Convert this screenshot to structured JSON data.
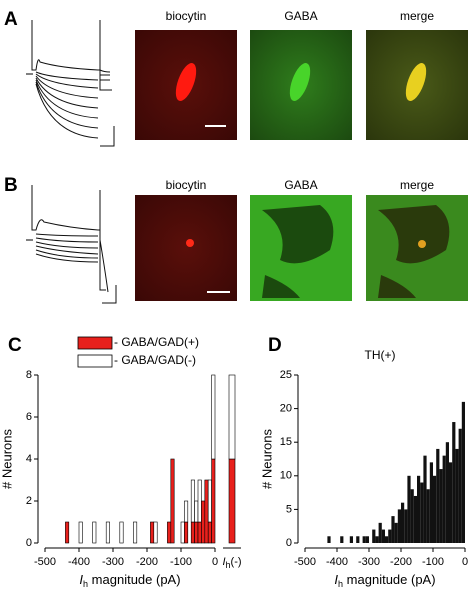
{
  "panels": [
    {
      "label": "A",
      "images": [
        "biocytin",
        "GABA",
        "merge"
      ]
    },
    {
      "label": "B",
      "images": [
        "biocytin",
        "GABA",
        "merge"
      ]
    }
  ],
  "chart_data": [
    {
      "type": "stacked_bar",
      "panel_label": "C",
      "x": [
        -435,
        -395,
        -355,
        -315,
        -275,
        -235,
        -185,
        -175,
        -135,
        -125,
        -95,
        -85,
        -65,
        -55,
        -45,
        -35,
        -25,
        -15,
        -5
      ],
      "series": [
        {
          "name": "- GABA/GAD(+)",
          "color": "#e8201c",
          "values": [
            1,
            0,
            0,
            0,
            0,
            0,
            1,
            0,
            1,
            4,
            0,
            1,
            1,
            1,
            1,
            2,
            3,
            1,
            4
          ],
          "extra_value": 4
        },
        {
          "name": "- GABA/GAD(-)",
          "color": "#ffffff",
          "values": [
            0,
            1,
            1,
            1,
            1,
            1,
            0,
            1,
            0,
            0,
            1,
            1,
            2,
            1,
            2,
            0,
            0,
            2,
            4
          ],
          "extra_value": 4
        }
      ],
      "extra_label": {
        "symbol": "I",
        "subscript": "h",
        "text": "(-)"
      },
      "xlim": [
        -500,
        0
      ],
      "xticks": [
        -500,
        -400,
        -300,
        -200,
        -100,
        0
      ],
      "ylim": [
        0,
        8
      ],
      "yticks": [
        0,
        2,
        4,
        6,
        8
      ],
      "x_label": {
        "symbol": "I",
        "subscript": "h",
        "text": " magnitude (pA)"
      },
      "y_label": "# Neurons"
    },
    {
      "type": "histogram",
      "panel_label": "D",
      "title": "TH(+)",
      "color": "#111111",
      "bins": [
        -440,
        -430,
        -420,
        -410,
        -400,
        -390,
        -380,
        -370,
        -360,
        -350,
        -340,
        -330,
        -320,
        -310,
        -300,
        -290,
        -280,
        -270,
        -260,
        -250,
        -240,
        -230,
        -220,
        -210,
        -200,
        -190,
        -180,
        -170,
        -160,
        -150,
        -140,
        -130,
        -120,
        -110,
        -100,
        -90,
        -80,
        -70,
        -60,
        -50,
        -40,
        -30,
        -20,
        -10,
        0
      ],
      "counts": [
        0,
        1,
        0,
        0,
        0,
        1,
        0,
        0,
        1,
        0,
        1,
        0,
        1,
        1,
        0,
        2,
        1,
        3,
        2,
        1,
        2,
        4,
        3,
        5,
        6,
        5,
        10,
        8,
        7,
        10,
        9,
        13,
        8,
        12,
        10,
        14,
        11,
        13,
        15,
        12,
        18,
        14,
        17,
        21
      ],
      "xlim": [
        -500,
        0
      ],
      "xticks": [
        -500,
        -400,
        -300,
        -200,
        -100,
        0
      ],
      "ylim": [
        0,
        25
      ],
      "yticks": [
        0,
        5,
        10,
        15,
        20,
        25
      ],
      "x_label": {
        "symbol": "I",
        "subscript": "h",
        "text": " magnitude (pA)"
      },
      "y_label": "# Neurons"
    }
  ]
}
